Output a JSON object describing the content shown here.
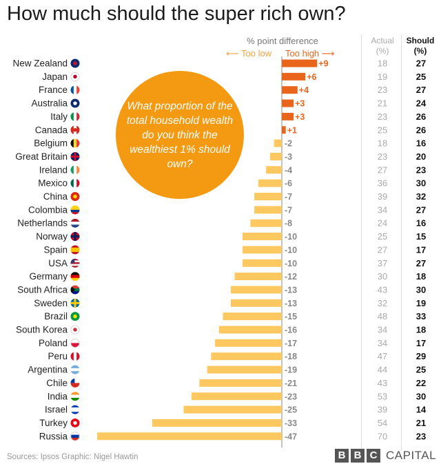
{
  "title": "How much should the super rich own?",
  "chart_data": {
    "type": "bar",
    "orientation": "horizontal",
    "title": "How much should the super rich own?",
    "xlabel": "% point difference",
    "negative_label": "⟵ Too low",
    "positive_label": "Too high ⟶",
    "xlim": [
      -47,
      9
    ],
    "actual_header": "Actual (%)",
    "should_header": "Should (%)",
    "categories": [
      "New Zealand",
      "Japan",
      "France",
      "Australia",
      "Italy",
      "Canada",
      "Belgium",
      "Great Britain",
      "Ireland",
      "Mexico",
      "China",
      "Colombia",
      "Netherlands",
      "Norway",
      "Spain",
      "USA",
      "Germany",
      "South Africa",
      "Sweden",
      "Brazil",
      "South Korea",
      "Poland",
      "Peru",
      "Argentina",
      "Chile",
      "India",
      "Israel",
      "Turkey",
      "Russia"
    ],
    "values": [
      9,
      6,
      4,
      3,
      3,
      1,
      -2,
      -3,
      -4,
      -6,
      -7,
      -7,
      -8,
      -10,
      -10,
      -10,
      -12,
      -13,
      -13,
      -15,
      -16,
      -17,
      -18,
      -19,
      -21,
      -23,
      -25,
      -33,
      -47
    ],
    "value_labels": [
      "+9",
      "+6",
      "+4",
      "+3",
      "+3",
      "+1",
      "-2",
      "-3",
      "-4",
      "-6",
      "-7",
      "-7",
      "-8",
      "-10",
      "-10",
      "-10",
      "-12",
      "-13",
      "-13",
      "-15",
      "-16",
      "-17",
      "-18",
      "-19",
      "-21",
      "-23",
      "-25",
      "-33",
      "-47"
    ],
    "actual": [
      18,
      19,
      23,
      21,
      23,
      25,
      18,
      23,
      27,
      36,
      39,
      34,
      24,
      25,
      27,
      37,
      30,
      43,
      32,
      48,
      34,
      34,
      47,
      44,
      43,
      53,
      39,
      54,
      70
    ],
    "should": [
      27,
      25,
      27,
      24,
      26,
      26,
      16,
      20,
      23,
      30,
      32,
      27,
      16,
      15,
      17,
      27,
      18,
      30,
      19,
      33,
      18,
      17,
      29,
      25,
      22,
      30,
      14,
      21,
      23
    ],
    "colors": {
      "positive": "#e8651b",
      "negative": "#fcc85f",
      "positive_text": "#e8651b",
      "negative_text": "#888888"
    }
  },
  "flag_icons": [
    "new-zealand-flag-icon",
    "japan-flag-icon",
    "france-flag-icon",
    "australia-flag-icon",
    "italy-flag-icon",
    "canada-flag-icon",
    "belgium-flag-icon",
    "great-britain-flag-icon",
    "ireland-flag-icon",
    "mexico-flag-icon",
    "china-flag-icon",
    "colombia-flag-icon",
    "netherlands-flag-icon",
    "norway-flag-icon",
    "spain-flag-icon",
    "usa-flag-icon",
    "germany-flag-icon",
    "south-africa-flag-icon",
    "sweden-flag-icon",
    "brazil-flag-icon",
    "south-korea-flag-icon",
    "poland-flag-icon",
    "peru-flag-icon",
    "argentina-flag-icon",
    "chile-flag-icon",
    "india-flag-icon",
    "israel-flag-icon",
    "turkey-flag-icon",
    "russia-flag-icon"
  ],
  "callout": "What proportion of the total household wealth do you think the wealthiest 1% should own?",
  "header": {
    "axis_title": "% point difference",
    "too_low": "⟵ Too low",
    "too_high": "Too high ⟶",
    "actual_line1": "Actual",
    "actual_line2": "(%)",
    "should_line1": "Should",
    "should_line2": "(%)"
  },
  "footer": {
    "sources": "Sources: Ipsos    Graphic: Nigel Hawtin",
    "brand_letters": [
      "B",
      "B",
      "C"
    ],
    "brand_word": "CAPITAL"
  }
}
